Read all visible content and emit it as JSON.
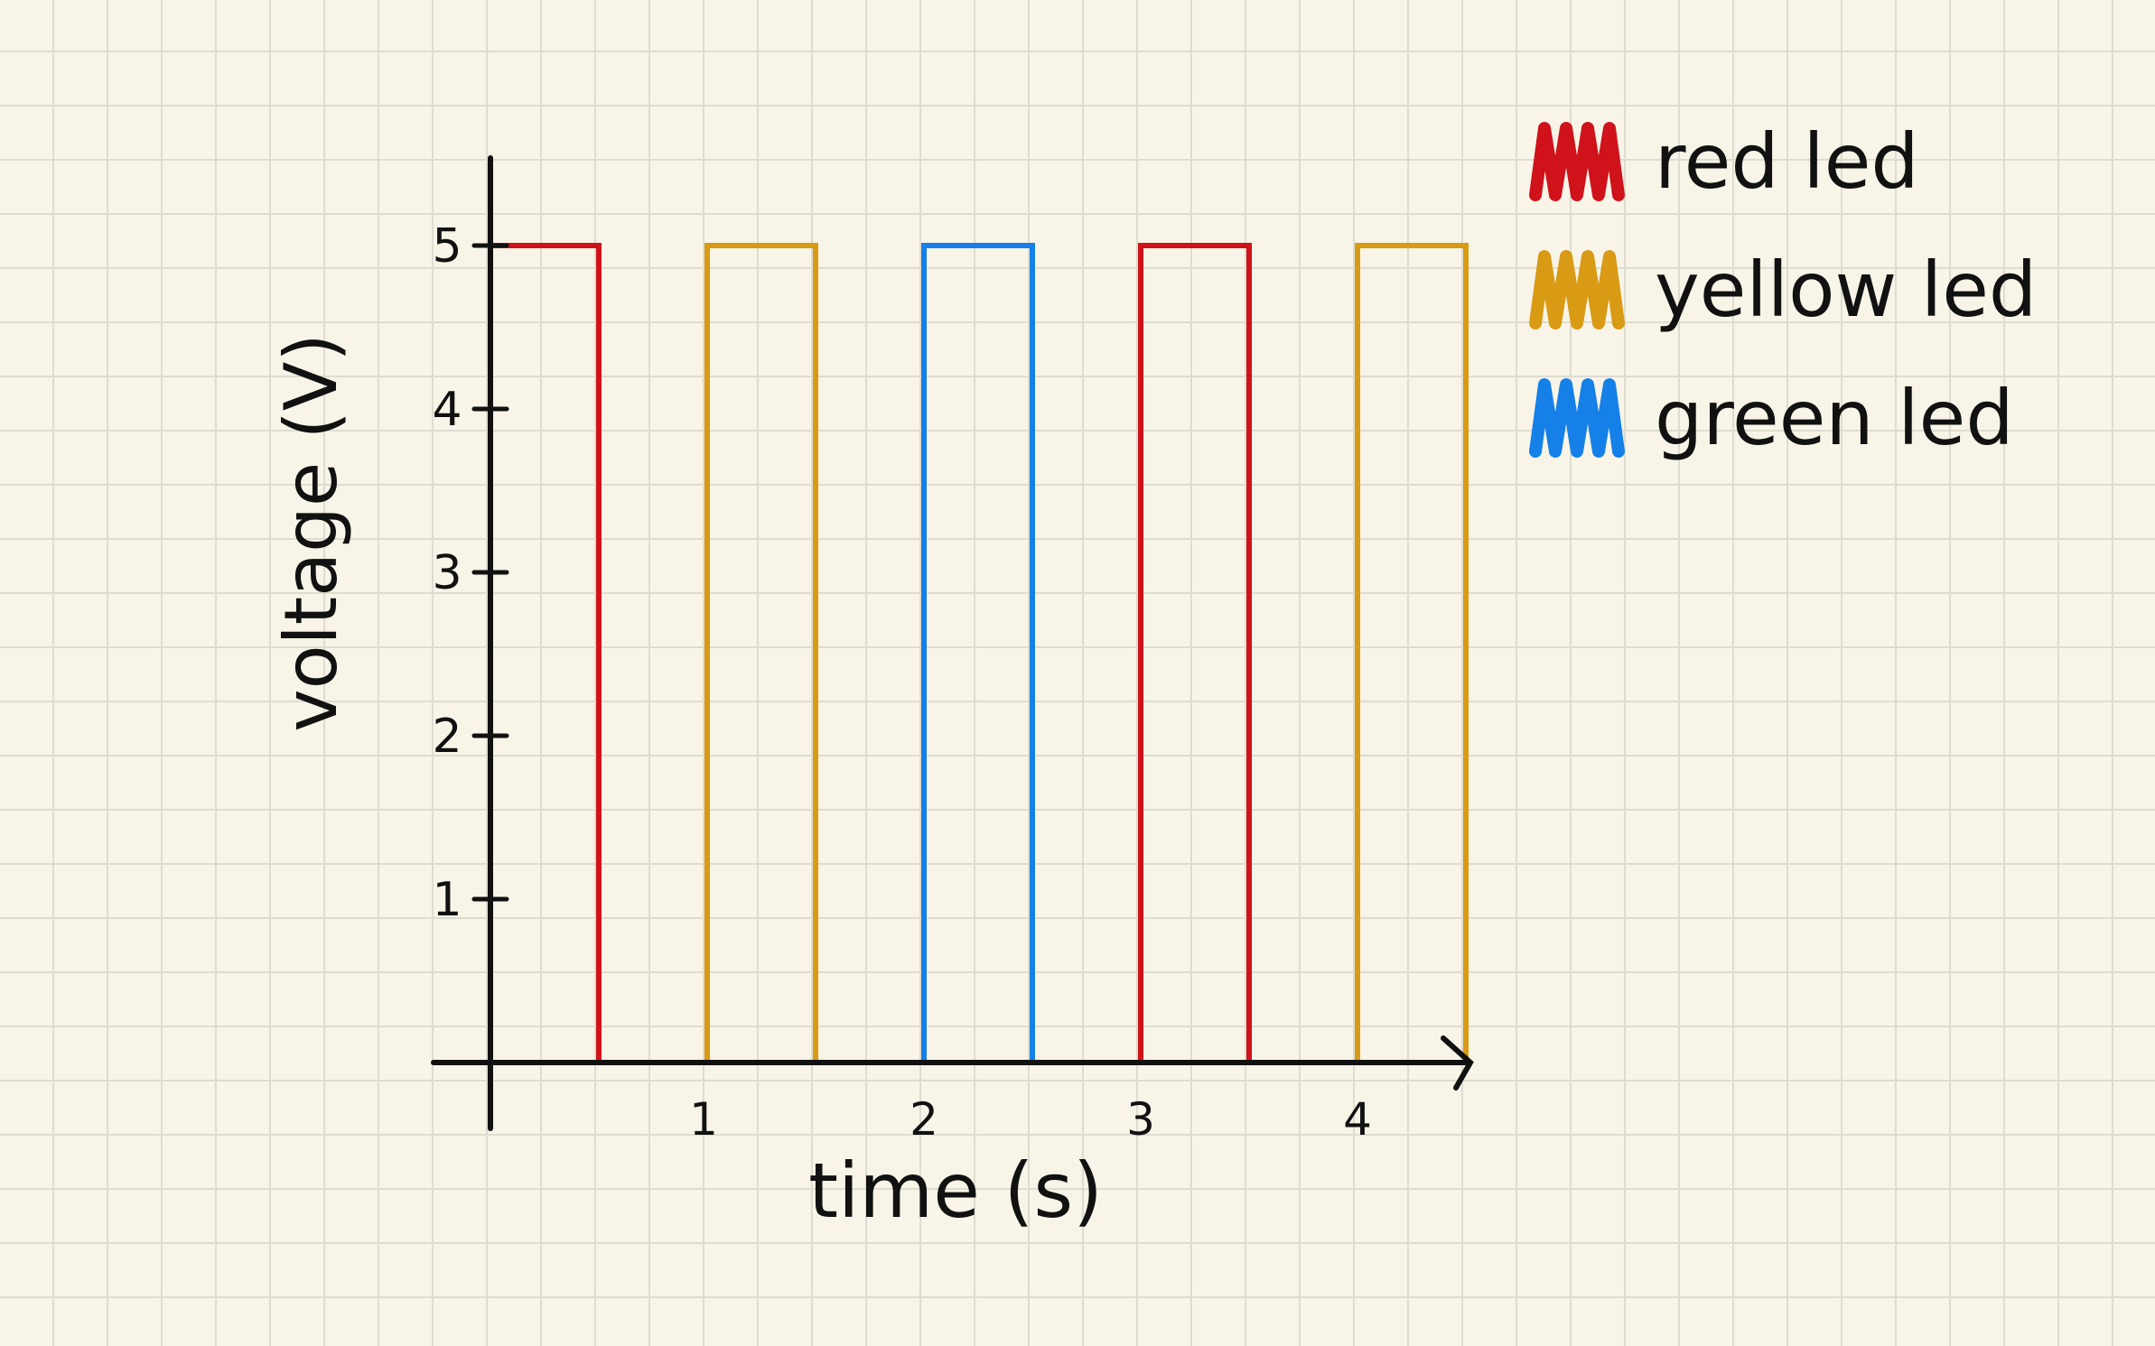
{
  "chart_data": {
    "type": "line",
    "title": "",
    "xlabel": "time (s)",
    "ylabel": "voltage (V)",
    "x_ticks": [
      "1",
      "2",
      "3",
      "4"
    ],
    "y_ticks": [
      "1",
      "2",
      "3",
      "4",
      "5"
    ],
    "xlim": [
      0,
      4.5
    ],
    "ylim": [
      0,
      5
    ],
    "grid": true,
    "legend_position": "top-right",
    "series": [
      {
        "name": "red led",
        "color": "#d0121b",
        "points": [
          [
            0,
            5
          ],
          [
            0.5,
            5
          ],
          [
            0.5,
            0
          ],
          [
            3.0,
            0
          ],
          [
            3.0,
            5
          ],
          [
            3.5,
            5
          ],
          [
            3.5,
            0
          ],
          [
            4.5,
            0
          ]
        ]
      },
      {
        "name": "yellow led",
        "color": "#d99a14",
        "points": [
          [
            0.5,
            0
          ],
          [
            1.0,
            0
          ],
          [
            1.0,
            5
          ],
          [
            1.5,
            5
          ],
          [
            1.5,
            0
          ],
          [
            4.0,
            0
          ],
          [
            4.0,
            5
          ],
          [
            4.5,
            5
          ],
          [
            4.5,
            0
          ]
        ]
      },
      {
        "name": "green led",
        "color": "#1480e8",
        "points": [
          [
            0,
            0
          ],
          [
            2.0,
            0
          ],
          [
            2.0,
            5
          ],
          [
            2.5,
            5
          ],
          [
            2.5,
            0
          ],
          [
            4.5,
            0
          ]
        ]
      }
    ]
  }
}
